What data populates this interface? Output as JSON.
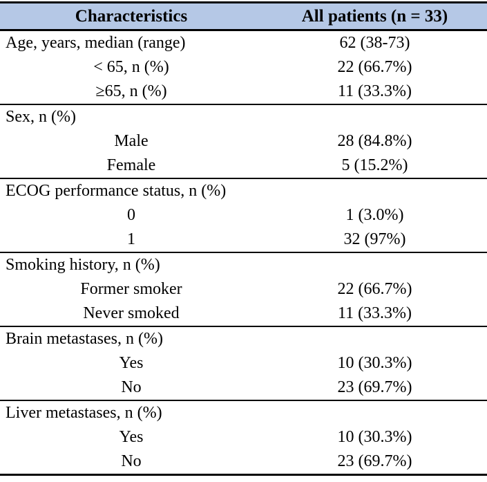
{
  "table": {
    "header": {
      "col1": "Characteristics",
      "col2": "All patients (n = 33)"
    },
    "sections": [
      {
        "rows": [
          {
            "label": "Age, years, median (range)",
            "value": "62 (38-73)"
          },
          {
            "label": "< 65, n (%)",
            "value": "22 (66.7%)"
          },
          {
            "label": "≥65, n (%)",
            "value": "11 (33.3%)"
          }
        ]
      },
      {
        "rows": [
          {
            "label": "Sex, n (%)",
            "value": ""
          },
          {
            "label": "Male",
            "value": "28 (84.8%)"
          },
          {
            "label": "Female",
            "value": "5 (15.2%)"
          }
        ]
      },
      {
        "rows": [
          {
            "label": "ECOG performance status, n (%)",
            "value": ""
          },
          {
            "label": "0",
            "value": "1 (3.0%)"
          },
          {
            "label": "1",
            "value": "32 (97%)"
          }
        ]
      },
      {
        "rows": [
          {
            "label": "Smoking history, n (%)",
            "value": ""
          },
          {
            "label": "Former smoker",
            "value": "22 (66.7%)"
          },
          {
            "label": "Never smoked",
            "value": "11 (33.3%)"
          }
        ]
      },
      {
        "rows": [
          {
            "label": "Brain metastases, n (%)",
            "value": ""
          },
          {
            "label": "Yes",
            "value": "10 (30.3%)"
          },
          {
            "label": "No",
            "value": "23 (69.7%)"
          }
        ]
      },
      {
        "rows": [
          {
            "label": "Liver metastases, n (%)",
            "value": ""
          },
          {
            "label": "Yes",
            "value": "10 (30.3%)"
          },
          {
            "label": "No",
            "value": "23 (69.7%)"
          }
        ]
      }
    ],
    "colors": {
      "header_bg": "#b5c8e6",
      "rule": "#000000",
      "text": "#000000"
    }
  }
}
